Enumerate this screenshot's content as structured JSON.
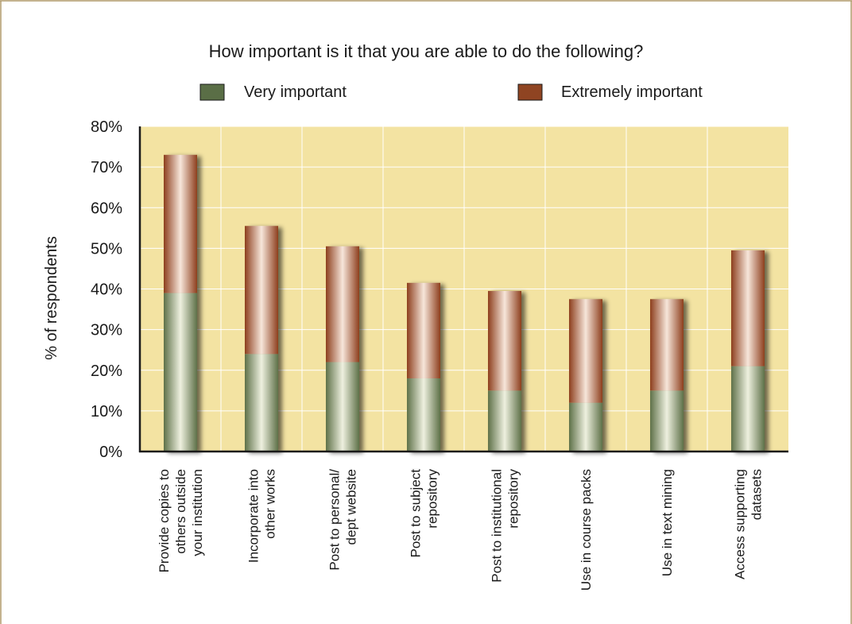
{
  "chart_data": {
    "type": "bar",
    "stacked": true,
    "title": "How important is it that you are able to do the following?",
    "ylabel": "% of respondents",
    "xlabel": "",
    "ylim": [
      0,
      80
    ],
    "yticks": [
      0,
      10,
      20,
      30,
      40,
      50,
      60,
      70,
      80
    ],
    "ytick_labels": [
      "0%",
      "10%",
      "20%",
      "30%",
      "40%",
      "50%",
      "60%",
      "70%",
      "80%"
    ],
    "grid": true,
    "legend_position": "top",
    "categories": [
      [
        "Provide copies to",
        "others outside",
        "your institution"
      ],
      [
        "Incorporate into",
        "other works"
      ],
      [
        "Post to personal/",
        "dept website"
      ],
      [
        "Post to subject",
        "repository"
      ],
      [
        "Post to institutional",
        "repository"
      ],
      [
        "Use in course packs"
      ],
      [
        "Use in text mining"
      ],
      [
        "Access supporting",
        "datasets"
      ]
    ],
    "series": [
      {
        "name": "Very important",
        "color": "#5a6e46",
        "values": [
          39,
          24,
          22,
          18,
          15,
          12,
          15,
          21
        ]
      },
      {
        "name": "Extremely important",
        "color": "#8f4422",
        "values": [
          34,
          31.5,
          28.5,
          23.5,
          24.5,
          25.5,
          22.5,
          28.5
        ]
      }
    ],
    "colors": {
      "plot_background": "#f3e3a2",
      "grid": "#ffffff",
      "axis": "#1a1a1a",
      "frame": "#b09a6a"
    }
  }
}
